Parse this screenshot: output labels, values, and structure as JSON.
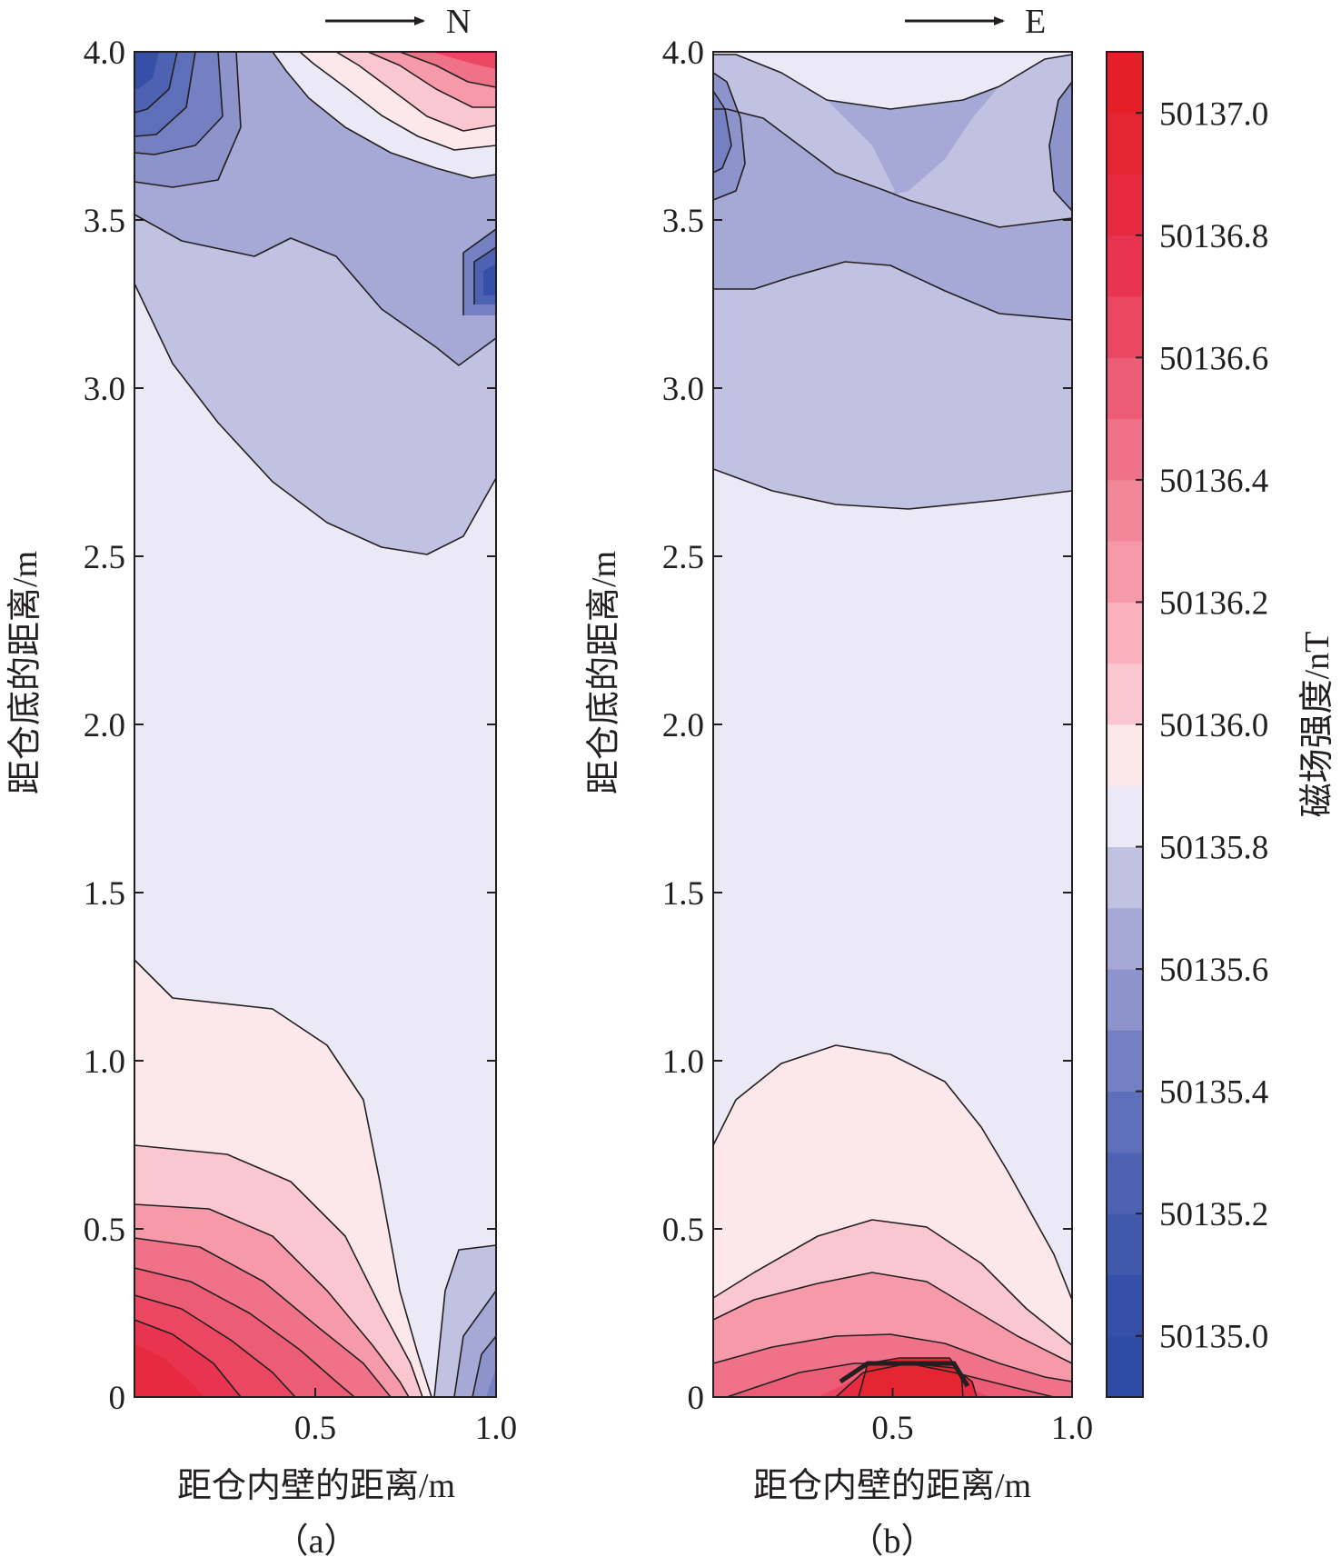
{
  "chart_data": [
    {
      "type": "contour",
      "panel": "(a)",
      "direction_label": "N",
      "xlabel": "距仓内壁的距离/m",
      "ylabel": "距仓底的距离/m",
      "xlim": [
        0.0,
        1.0
      ],
      "ylim": [
        0.0,
        4.0
      ],
      "xticks": [
        "0.5",
        "1.0"
      ],
      "yticks": [
        "0",
        "0.5",
        "1.0",
        "1.5",
        "2.0",
        "2.5",
        "3.0",
        "3.5",
        "4.0"
      ],
      "field_summary": [
        {
          "region": "bottom-left corner",
          "value_nT": 50137.1
        },
        {
          "region": "middle band 1.3-2.5 m",
          "value_nT": 50135.95
        },
        {
          "region": "upper-right (x=1.0,y=3.3)",
          "value_nT": 50135.3
        },
        {
          "region": "top-left corner",
          "value_nT": 50135.2
        },
        {
          "region": "top-right corner",
          "value_nT": 50136.6
        }
      ]
    },
    {
      "type": "contour",
      "panel": "(b)",
      "direction_label": "E",
      "xlabel": "距仓内壁的距离/m",
      "ylabel": "距仓底的距离/m",
      "xlim": [
        0.0,
        1.0
      ],
      "ylim": [
        0.0,
        4.0
      ],
      "xticks": [
        "0.5",
        "1.0"
      ],
      "yticks": [
        "0",
        "0.5",
        "1.0",
        "1.5",
        "2.0",
        "2.5",
        "3.0",
        "3.5",
        "4.0"
      ],
      "field_summary": [
        {
          "region": "bottom center (x=0.5,y=0)",
          "value_nT": 50137.1
        },
        {
          "region": "middle band 1.0-2.7 m",
          "value_nT": 50135.95
        },
        {
          "region": "upper band 3.3-3.8 m",
          "value_nT": 50135.75
        },
        {
          "region": "top edge",
          "value_nT": 50135.95
        }
      ]
    }
  ],
  "colorbar": {
    "label": "磁场强度/nT",
    "tick_labels": [
      "50137.0",
      "50136.8",
      "50136.6",
      "50136.4",
      "50136.2",
      "50136.0",
      "50135.8",
      "50135.6",
      "50135.4",
      "50135.2",
      "50135.0"
    ],
    "range_nT": [
      50134.9,
      50137.1
    ],
    "level_step_nT": 0.1,
    "colors": [
      "#2e4ca6",
      "#3650a9",
      "#4159ad",
      "#4d62b2",
      "#5e6fb9",
      "#7480c2",
      "#8d93cb",
      "#a6a8d6",
      "#c1c1e1",
      "#eae9f5",
      "#fce8ea",
      "#fac7d0",
      "#f9b1bd",
      "#f69aaa",
      "#f3879a",
      "#f07288",
      "#ed5c75",
      "#eb4762",
      "#e93450",
      "#e72a40",
      "#e52532",
      "#e41f28"
    ]
  },
  "panels": {
    "a": {
      "caption": "（a）"
    },
    "b": {
      "caption": "（b）"
    }
  }
}
